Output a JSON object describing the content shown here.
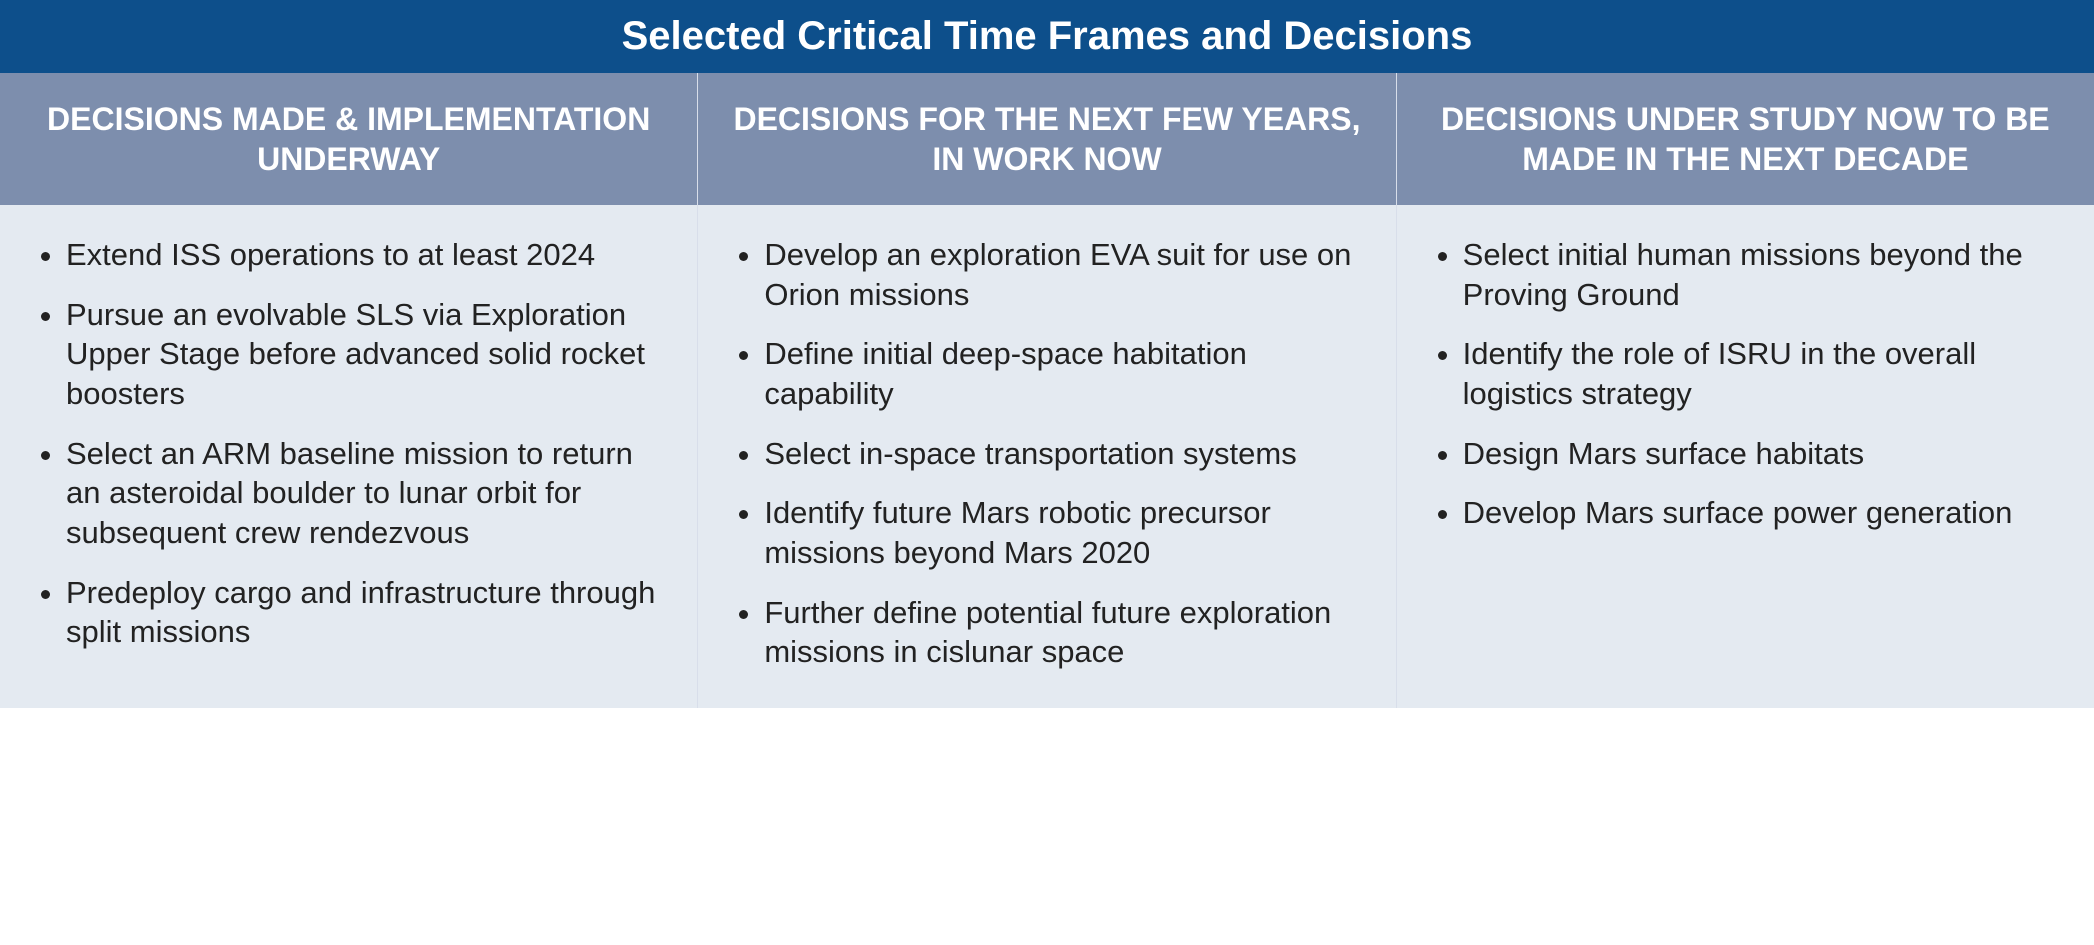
{
  "table": {
    "type": "table",
    "title": "Selected Critical Time Frames and Decisions",
    "title_background_color": "#0d4f8b",
    "title_text_color": "#ffffff",
    "title_fontsize": 40,
    "header_background_color": "#7d8ead",
    "header_text_color": "#ffffff",
    "header_fontsize": 32,
    "body_background_color": "#e4eaf1",
    "body_text_color": "#222222",
    "body_fontsize": 31,
    "border_color": "#d8deea",
    "columns": [
      {
        "header": "DECISIONS MADE & IMPLEMENTATION UNDERWAY",
        "items": [
          "Extend ISS operations to at least 2024",
          "Pursue an evolvable SLS via Exploration Upper Stage before advanced solid rocket boosters",
          "Select an ARM baseline mission to return an asteroidal boulder to lunar orbit for subsequent crew rendezvous",
          "Predeploy cargo and infrastructure through split missions"
        ]
      },
      {
        "header": "DECISIONS FOR THE NEXT FEW YEARS, IN WORK NOW",
        "items": [
          "Develop an exploration EVA suit for use on Orion missions",
          "Define initial deep-space habitation capability",
          "Select in-space transportation systems",
          "Identify future Mars robotic precursor missions beyond Mars 2020",
          "Further define potential future exploration missions in cislunar space"
        ]
      },
      {
        "header": "DECISIONS UNDER STUDY NOW TO BE MADE IN THE NEXT DECADE",
        "items": [
          "Select initial human missions beyond the Proving Ground",
          "Identify the role of ISRU in the overall logistics strategy",
          "Design Mars surface habitats",
          "Develop Mars surface power generation"
        ]
      }
    ]
  }
}
